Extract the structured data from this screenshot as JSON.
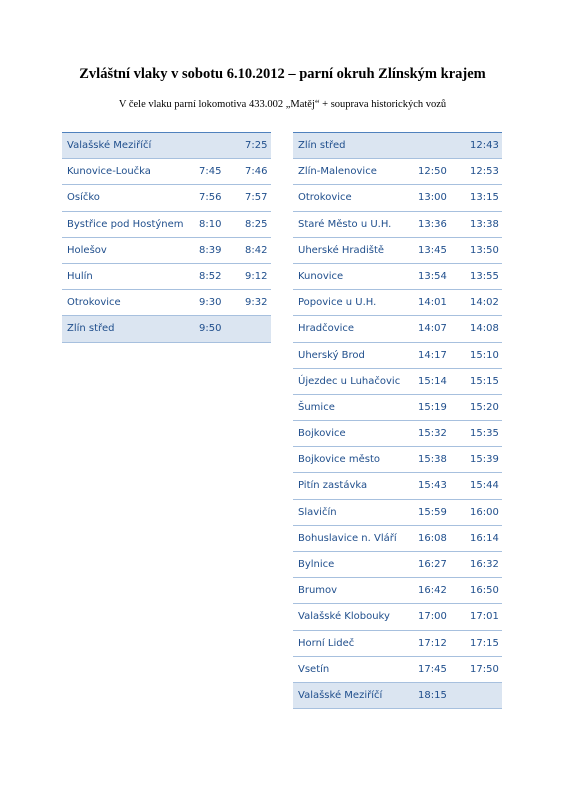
{
  "header": {
    "title": "Zvláštní vlaky v sobotu 6.10.2012 – parní okruh Zlínským krajem",
    "subtitle": "V čele vlaku parní lokomotiva 433.002 „Matěj“ + souprava historických vozů"
  },
  "tables": [
    {
      "rows": [
        {
          "station": "Valašské Meziříčí",
          "departure": "7:25"
        },
        {
          "station": "Kunovice-Loučka",
          "arrival": "7:45",
          "departure": "7:46"
        },
        {
          "station": "Osíčko",
          "arrival": "7:56",
          "departure": "7:57"
        },
        {
          "station": "Bystřice pod Hostýnem",
          "arrival": "8:10",
          "departure": "8:25"
        },
        {
          "station": "Holešov",
          "arrival": "8:39",
          "departure": "8:42"
        },
        {
          "station": "Hulín",
          "arrival": "8:52",
          "departure": "9:12"
        },
        {
          "station": "Otrokovice",
          "arrival": "9:30",
          "departure": "9:32"
        },
        {
          "station": "Zlín střed",
          "arrival": "9:50"
        }
      ]
    },
    {
      "rows": [
        {
          "station": "Zlín střed",
          "departure": "12:43"
        },
        {
          "station": "Zlín-Malenovice",
          "arrival": "12:50",
          "departure": "12:53"
        },
        {
          "station": "Otrokovice",
          "arrival": "13:00",
          "departure": "13:15"
        },
        {
          "station": "Staré Město u U.H.",
          "arrival": "13:36",
          "departure": "13:38"
        },
        {
          "station": "Uherské Hradiště",
          "arrival": "13:45",
          "departure": "13:50"
        },
        {
          "station": "Kunovice",
          "arrival": "13:54",
          "departure": "13:55"
        },
        {
          "station": "Popovice u U.H.",
          "arrival": "14:01",
          "departure": "14:02"
        },
        {
          "station": "Hradčovice",
          "arrival": "14:07",
          "departure": "14:08"
        },
        {
          "station": "Uherský Brod",
          "arrival": "14:17",
          "departure": "15:10"
        },
        {
          "station": "Újezdec u Luhačovic",
          "arrival": "15:14",
          "departure": "15:15"
        },
        {
          "station": "Šumice",
          "arrival": "15:19",
          "departure": "15:20"
        },
        {
          "station": "Bojkovice",
          "arrival": "15:32",
          "departure": "15:35"
        },
        {
          "station": "Bojkovice město",
          "arrival": "15:38",
          "departure": "15:39"
        },
        {
          "station": "Pitín zastávka",
          "arrival": "15:43",
          "departure": "15:44"
        },
        {
          "station": "Slavičín",
          "arrival": "15:59",
          "departure": "16:00"
        },
        {
          "station": "Bohuslavice n. Vláří",
          "arrival": "16:08",
          "departure": "16:14"
        },
        {
          "station": "Bylnice",
          "arrival": "16:27",
          "departure": "16:32"
        },
        {
          "station": "Brumov",
          "arrival": "16:42",
          "departure": "16:50"
        },
        {
          "station": "Valašské Klobouky",
          "arrival": "17:00",
          "departure": "17:01"
        },
        {
          "station": "Horní Lideč",
          "arrival": "17:12",
          "departure": "17:15"
        },
        {
          "station": "Vsetín",
          "arrival": "17:45",
          "departure": "17:50"
        },
        {
          "station": "Valašské Meziříčí",
          "arrival": "18:15"
        }
      ]
    }
  ]
}
